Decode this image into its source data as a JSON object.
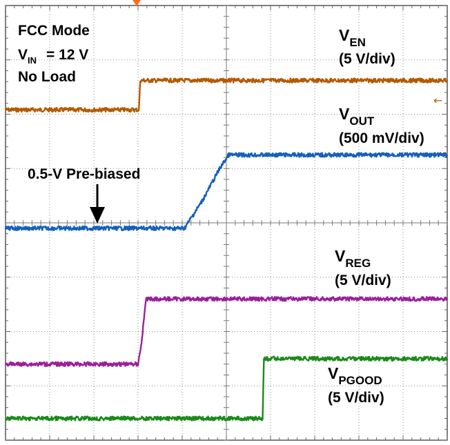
{
  "chart_data": {
    "type": "line",
    "title": "",
    "x_divisions": 10,
    "y_divisions": 8,
    "grid": true,
    "info": {
      "mode": "FCC Mode",
      "vin_prefix": "V",
      "vin_sub": "IN",
      "vin_value": "= 12 V",
      "load": "No Load"
    },
    "annotation": {
      "text": "0.5-V Pre-biased"
    },
    "series": [
      {
        "name": "VEN",
        "name_base": "V",
        "name_sub": "EN",
        "scale": "(5 V/div)",
        "color": "#b35a00",
        "x_div": [
          0,
          3.02,
          3.05,
          10
        ],
        "y_div": [
          6.08,
          6.08,
          6.62,
          6.62
        ]
      },
      {
        "name": "VOUT",
        "name_base": "V",
        "name_sub": "OUT",
        "scale": "(500 mV/div)",
        "color": "#1560bd",
        "x_div": [
          0,
          4.05,
          4.45,
          4.85,
          5.05,
          10
        ],
        "y_div": [
          3.9,
          3.9,
          4.4,
          5.0,
          5.25,
          5.25
        ]
      },
      {
        "name": "VREG",
        "name_base": "V",
        "name_sub": "REG",
        "scale": "(5 V/div)",
        "color": "#9b1f9b",
        "x_div": [
          0,
          3.0,
          3.08,
          3.18,
          10
        ],
        "y_div": [
          1.4,
          1.4,
          1.8,
          2.6,
          2.6
        ]
      },
      {
        "name": "VPGOOD",
        "name_base": "V",
        "name_sub": "PGOOD",
        "scale": "(5 V/div)",
        "color": "#1a8a1a",
        "x_div": [
          0,
          5.82,
          5.85,
          10
        ],
        "y_div": [
          0.4,
          0.4,
          1.5,
          1.5
        ]
      }
    ]
  },
  "markers": {
    "top_trigger_color": "#ff6a1a",
    "right_arrow_glyph": "←"
  }
}
